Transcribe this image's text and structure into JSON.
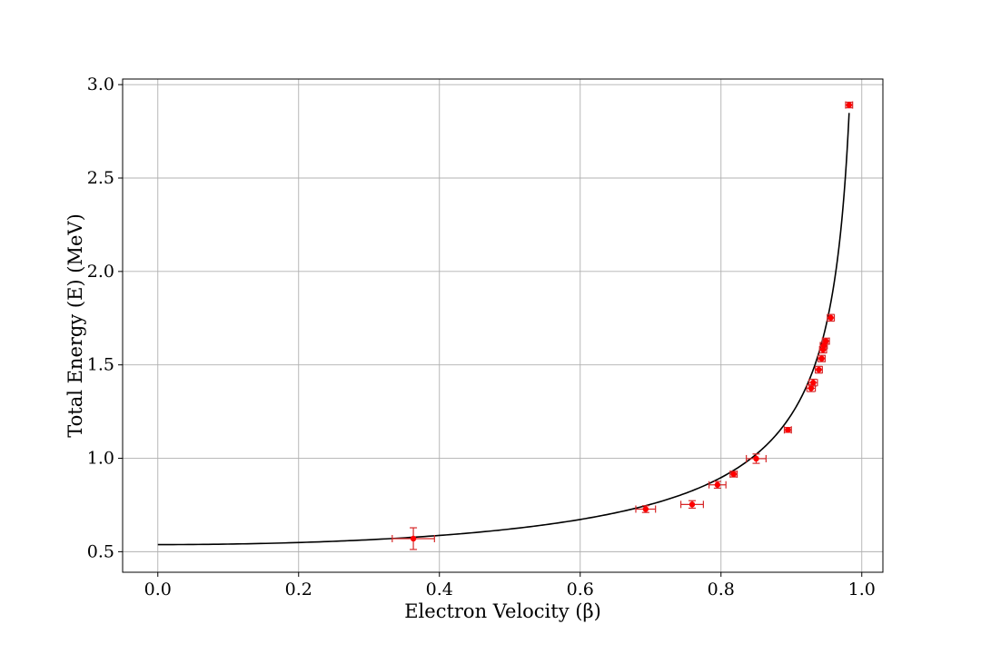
{
  "chart_data": {
    "type": "scatter",
    "title": "",
    "xlabel": "Electron Velocity (β)",
    "ylabel": "Total Energy (E)  (MeV)",
    "xlim": [
      -0.05,
      1.03
    ],
    "ylim": [
      0.39,
      3.03
    ],
    "xticks": [
      0.0,
      0.2,
      0.4,
      0.6,
      0.8,
      1.0
    ],
    "xtick_labels": [
      "0.0",
      "0.2",
      "0.4",
      "0.6",
      "0.8",
      "1.0"
    ],
    "yticks": [
      0.5,
      1.0,
      1.5,
      2.0,
      2.5,
      3.0
    ],
    "ytick_labels": [
      "0.5",
      "1.0",
      "1.5",
      "2.0",
      "2.5",
      "3.0"
    ],
    "grid": true,
    "colors": {
      "points": "#ff0000",
      "errorbars": "#d62728",
      "curve": "#000000",
      "grid": "#b0b0b0"
    },
    "series": [
      {
        "type": "errorbar",
        "points": [
          {
            "x": 0.363,
            "y": 0.57,
            "xerr": 0.03,
            "yerr": 0.058
          },
          {
            "x": 0.693,
            "y": 0.728,
            "xerr": 0.014,
            "yerr": 0.018
          },
          {
            "x": 0.759,
            "y": 0.753,
            "xerr": 0.016,
            "yerr": 0.02
          },
          {
            "x": 0.795,
            "y": 0.858,
            "xerr": 0.012,
            "yerr": 0.018
          },
          {
            "x": 0.818,
            "y": 0.915,
            "xerr": 0.005,
            "yerr": 0.015
          },
          {
            "x": 0.85,
            "y": 0.998,
            "xerr": 0.014,
            "yerr": 0.025
          },
          {
            "x": 0.895,
            "y": 1.152,
            "xerr": 0.005,
            "yerr": 0.013
          },
          {
            "x": 0.928,
            "y": 1.375,
            "xerr": 0.006,
            "yerr": 0.018
          },
          {
            "x": 0.931,
            "y": 1.405,
            "xerr": 0.006,
            "yerr": 0.018
          },
          {
            "x": 0.939,
            "y": 1.474,
            "xerr": 0.005,
            "yerr": 0.018
          },
          {
            "x": 0.943,
            "y": 1.534,
            "xerr": 0.005,
            "yerr": 0.017
          },
          {
            "x": 0.945,
            "y": 1.581,
            "xerr": 0.005,
            "yerr": 0.017
          },
          {
            "x": 0.946,
            "y": 1.603,
            "xerr": 0.005,
            "yerr": 0.017
          },
          {
            "x": 0.949,
            "y": 1.627,
            "xerr": 0.005,
            "yerr": 0.016
          },
          {
            "x": 0.956,
            "y": 1.752,
            "xerr": 0.005,
            "yerr": 0.018
          },
          {
            "x": 0.982,
            "y": 2.891,
            "xerr": 0.005,
            "yerr": 0.015
          }
        ]
      },
      {
        "type": "line",
        "formula": "E = 0.538 / sqrt(1 - beta^2)",
        "e0": 0.538,
        "x_range": [
          0.0,
          0.982
        ]
      }
    ]
  }
}
